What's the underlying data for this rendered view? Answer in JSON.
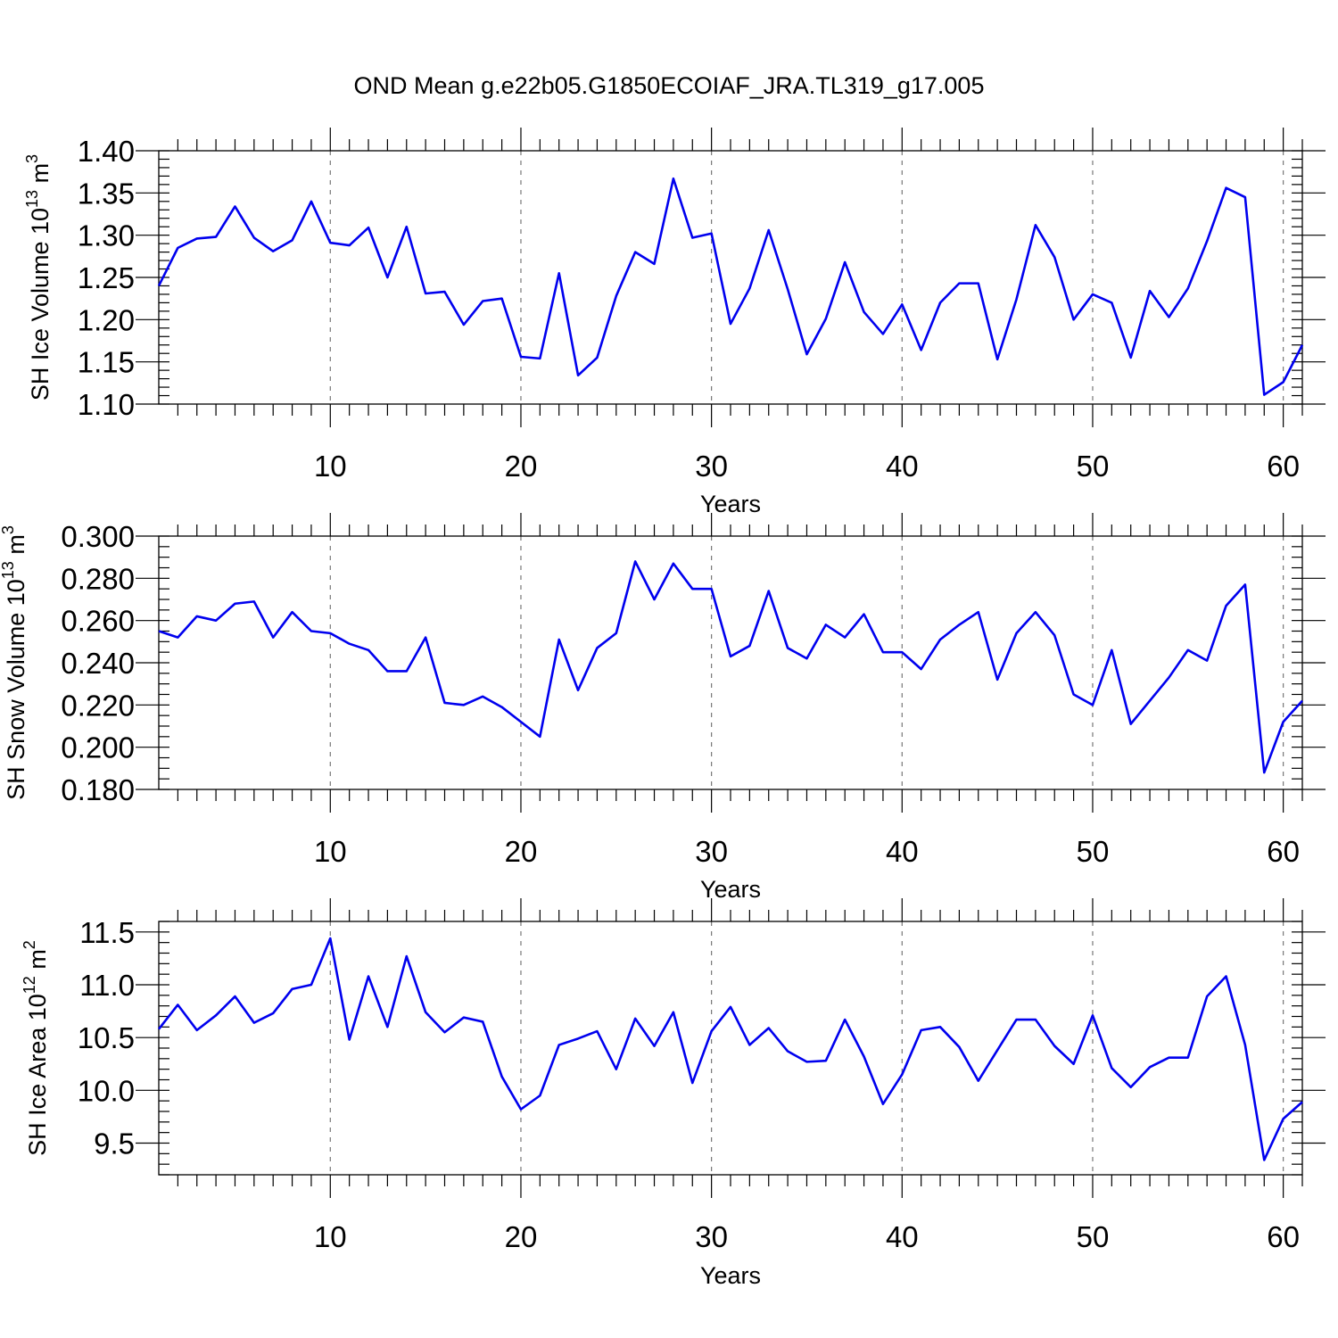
{
  "figure": {
    "title": "OND Mean g.e22b05.G1850ECOIAF_JRA.TL319_g17.005",
    "line_color": "#0000ee"
  },
  "chart_data": [
    {
      "type": "line",
      "xlabel": "Years",
      "ylabel": "SH Ice Volume 10",
      "ylabel_sup": "13",
      "ylabel_unit": " m",
      "ylabel_unit_sup": "3",
      "xlim": [
        1,
        61
      ],
      "ylim": [
        1.1,
        1.4
      ],
      "xticks": [
        10,
        20,
        30,
        40,
        50,
        60
      ],
      "yticks": [
        "1.10",
        "1.15",
        "1.20",
        "1.25",
        "1.30",
        "1.35",
        "1.40"
      ],
      "x_grid": "dashed vertical lines at labeled x ticks",
      "series": [
        {
          "values": [
            1.24,
            1.285,
            1.296,
            1.298,
            1.334,
            1.297,
            1.281,
            1.294,
            1.34,
            1.291,
            1.288,
            1.309,
            1.25,
            1.31,
            1.231,
            1.233,
            1.194,
            1.222,
            1.225,
            1.156,
            1.154,
            1.255,
            1.134,
            1.155,
            1.228,
            1.28,
            1.266,
            1.367,
            1.297,
            1.302,
            1.195,
            1.237,
            1.306,
            1.236,
            1.159,
            1.201,
            1.268,
            1.209,
            1.183,
            1.218,
            1.164,
            1.22,
            1.243,
            1.243,
            1.153,
            1.224,
            1.312,
            1.274,
            1.2,
            1.23,
            1.22,
            1.155,
            1.234,
            1.203,
            1.237,
            1.293,
            1.356,
            1.345,
            1.111,
            1.126,
            1.17
          ]
        }
      ]
    },
    {
      "type": "line",
      "xlabel": "Years",
      "ylabel": "SH Snow Volume 10",
      "ylabel_sup": "13",
      "ylabel_unit": " m",
      "ylabel_unit_sup": "3",
      "xlim": [
        1,
        61
      ],
      "ylim": [
        0.18,
        0.3
      ],
      "xticks": [
        10,
        20,
        30,
        40,
        50,
        60
      ],
      "yticks": [
        "0.180",
        "0.200",
        "0.220",
        "0.240",
        "0.260",
        "0.280",
        "0.300"
      ],
      "x_grid": "dashed vertical lines at labeled x ticks",
      "series": [
        {
          "values": [
            0.255,
            0.252,
            0.262,
            0.26,
            0.268,
            0.269,
            0.252,
            0.264,
            0.255,
            0.254,
            0.249,
            0.246,
            0.236,
            0.236,
            0.252,
            0.221,
            0.22,
            0.224,
            0.219,
            0.212,
            0.205,
            0.251,
            0.227,
            0.247,
            0.254,
            0.288,
            0.27,
            0.287,
            0.275,
            0.275,
            0.243,
            0.248,
            0.274,
            0.247,
            0.242,
            0.258,
            0.252,
            0.263,
            0.245,
            0.245,
            0.237,
            0.251,
            0.258,
            0.264,
            0.232,
            0.254,
            0.264,
            0.253,
            0.225,
            0.22,
            0.246,
            0.211,
            0.222,
            0.233,
            0.246,
            0.241,
            0.267,
            0.277,
            0.188,
            0.212,
            0.222
          ]
        }
      ]
    },
    {
      "type": "line",
      "xlabel": "Years",
      "ylabel": "SH Ice Area 10",
      "ylabel_sup": "12",
      "ylabel_unit": " m",
      "ylabel_unit_sup": "2",
      "xlim": [
        1,
        61
      ],
      "ylim": [
        9.2,
        11.6
      ],
      "xticks": [
        10,
        20,
        30,
        40,
        50,
        60
      ],
      "yticks": [
        "9.5",
        "10.0",
        "10.5",
        "11.0",
        "11.5"
      ],
      "x_grid": "dashed vertical lines at labeled x ticks",
      "series": [
        {
          "values": [
            10.58,
            10.81,
            10.57,
            10.71,
            10.89,
            10.64,
            10.73,
            10.96,
            11.0,
            11.44,
            10.48,
            11.08,
            10.6,
            11.27,
            10.74,
            10.55,
            10.69,
            10.65,
            10.13,
            9.82,
            9.95,
            10.43,
            10.49,
            10.56,
            10.2,
            10.68,
            10.42,
            10.74,
            10.07,
            10.56,
            10.79,
            10.43,
            10.59,
            10.37,
            10.27,
            10.28,
            10.67,
            10.32,
            9.87,
            10.15,
            10.57,
            10.6,
            10.41,
            10.09,
            10.38,
            10.67,
            10.67,
            10.42,
            10.25,
            10.71,
            10.21,
            10.03,
            10.22,
            10.31,
            10.31,
            10.89,
            11.08,
            10.43,
            9.34,
            9.73,
            9.89
          ]
        }
      ]
    }
  ]
}
